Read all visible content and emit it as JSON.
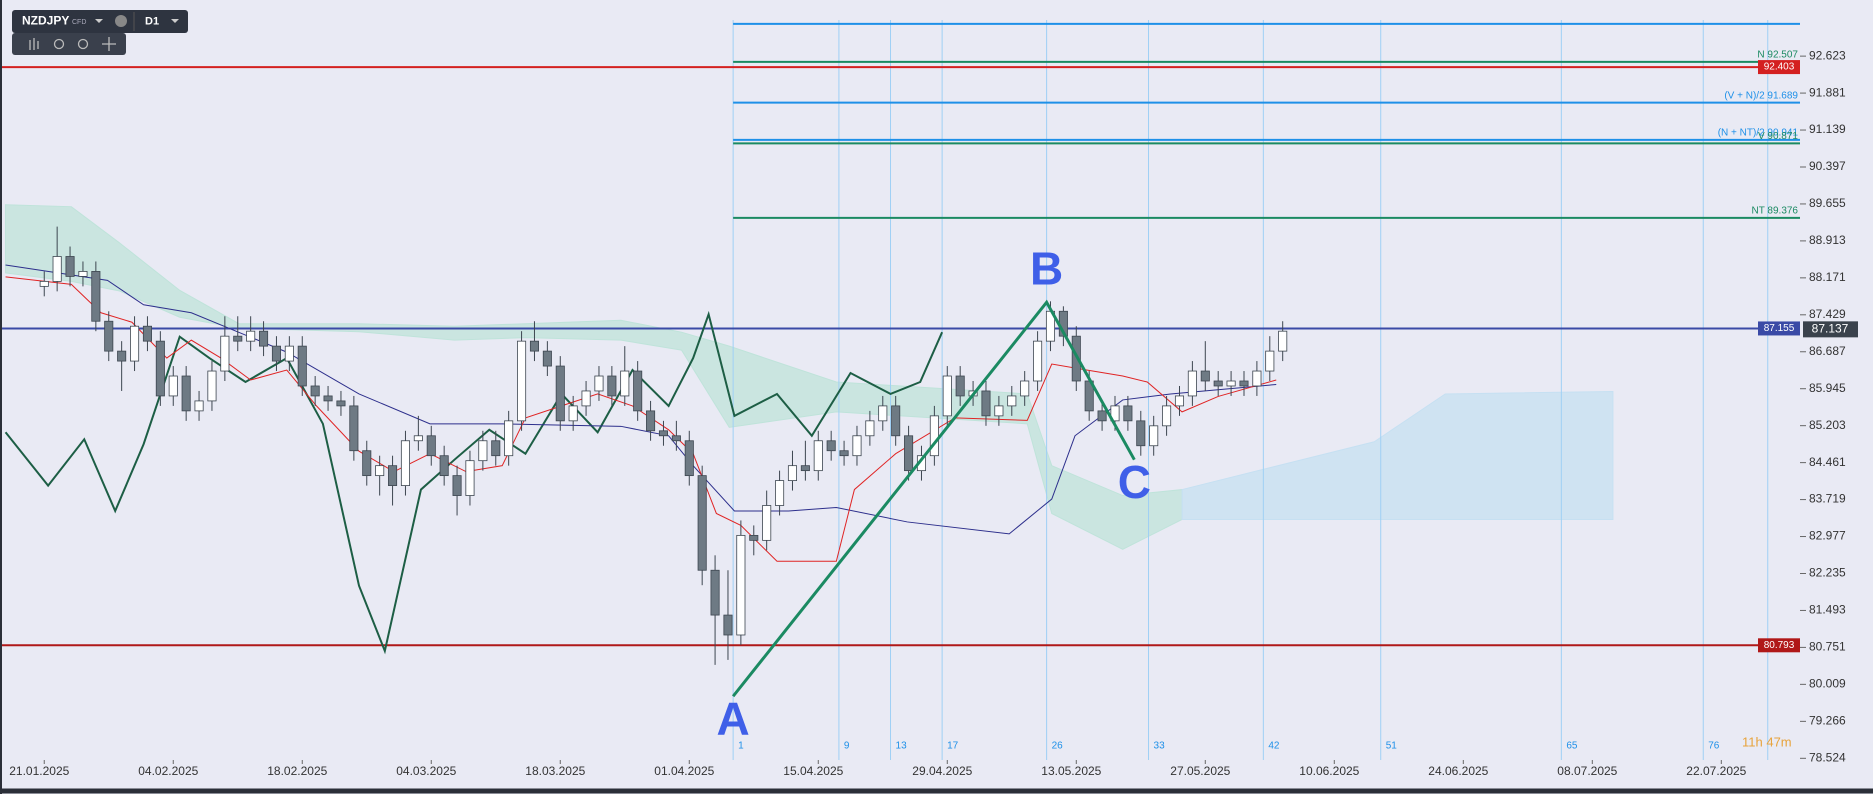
{
  "chart_data": {
    "type": "candlestick",
    "symbol": "NZDJPY",
    "badge": "CFD",
    "timeframe": "D1",
    "timer": "11h 47m",
    "xlim": [
      -3.43,
      136.1
    ],
    "ylim": [
      78.49,
      93.75
    ],
    "yticks": [
      92.623,
      91.881,
      91.139,
      90.397,
      89.655,
      88.913,
      88.171,
      87.429,
      86.687,
      85.945,
      85.203,
      84.461,
      83.719,
      82.977,
      82.235,
      81.493,
      80.751,
      80.009,
      79.266,
      78.524
    ],
    "xticks": [
      {
        "value": 0,
        "label": "21.01.2025"
      },
      {
        "value": 10,
        "label": "04.02.2025"
      },
      {
        "value": 20,
        "label": "18.02.2025"
      },
      {
        "value": 30,
        "label": "04.03.2025"
      },
      {
        "value": 40,
        "label": "18.03.2025"
      },
      {
        "value": 50,
        "label": "01.04.2025"
      },
      {
        "value": 60,
        "label": "15.04.2025"
      },
      {
        "value": 70,
        "label": "29.04.2025"
      },
      {
        "value": 80,
        "label": "13.05.2025"
      },
      {
        "value": 90,
        "label": "27.05.2025"
      },
      {
        "value": 100,
        "label": "10.06.2025"
      },
      {
        "value": 110,
        "label": "24.06.2025"
      },
      {
        "value": 120,
        "label": "08.07.2025"
      },
      {
        "value": 130,
        "label": "22.07.2025"
      }
    ],
    "x": [
      0,
      1,
      2,
      3,
      4,
      5,
      6,
      7,
      8,
      9,
      10,
      11,
      12,
      13,
      14,
      15,
      16,
      17,
      18,
      19,
      20,
      21,
      22,
      23,
      24,
      25,
      26,
      27,
      28,
      29,
      30,
      31,
      32,
      33,
      34,
      35,
      36,
      37,
      38,
      39,
      40,
      41,
      42,
      43,
      44,
      45,
      46,
      47,
      48,
      49,
      50,
      51,
      52,
      53,
      54,
      55,
      56,
      57,
      58,
      59,
      60,
      61,
      62,
      63,
      64,
      65,
      66,
      67,
      68,
      69,
      70,
      71,
      72,
      73,
      74,
      75,
      76,
      77,
      78,
      79,
      80,
      81,
      82,
      83,
      84,
      85,
      86,
      87,
      88,
      89,
      90,
      91,
      92,
      93,
      94,
      95,
      96
    ],
    "open": [
      88.0,
      88.1,
      88.6,
      88.2,
      88.3,
      87.3,
      86.7,
      86.5,
      87.2,
      86.9,
      85.8,
      86.2,
      85.5,
      85.7,
      86.3,
      87.0,
      86.9,
      87.1,
      86.8,
      86.5,
      86.8,
      86.0,
      85.8,
      85.7,
      85.6,
      84.7,
      84.2,
      84.4,
      84.0,
      84.9,
      85.0,
      84.6,
      84.2,
      83.8,
      84.5,
      84.9,
      84.6,
      85.3,
      86.9,
      86.7,
      86.4,
      85.3,
      85.6,
      85.9,
      86.2,
      85.8,
      86.3,
      85.5,
      85.1,
      85.0,
      84.9,
      84.2,
      82.3,
      81.4,
      81.0,
      83.0,
      82.9,
      83.6,
      84.1,
      84.4,
      84.3,
      84.9,
      84.7,
      84.6,
      85.0,
      85.3,
      85.6,
      85.0,
      84.3,
      84.6,
      85.4,
      86.2,
      85.8,
      85.9,
      85.4,
      85.6,
      85.8,
      86.1,
      86.9,
      87.5,
      87.0,
      86.1,
      85.5,
      85.3,
      85.6,
      85.3,
      84.8,
      85.2,
      85.6,
      85.8,
      86.3,
      86.1,
      86.0,
      86.1,
      86.0,
      86.3,
      86.7
    ],
    "high": [
      88.3,
      89.2,
      88.8,
      88.5,
      88.5,
      87.5,
      86.9,
      87.4,
      87.4,
      87.1,
      86.4,
      86.4,
      85.9,
      86.5,
      87.4,
      87.4,
      87.4,
      87.3,
      87.0,
      87.0,
      87.0,
      86.2,
      86.0,
      85.9,
      85.8,
      84.9,
      84.6,
      84.6,
      85.1,
      85.4,
      85.2,
      84.8,
      84.4,
      84.7,
      85.1,
      85.1,
      85.5,
      87.1,
      87.3,
      86.9,
      86.6,
      85.8,
      86.1,
      86.4,
      86.4,
      86.8,
      86.5,
      85.7,
      85.3,
      85.3,
      85.1,
      84.4,
      82.6,
      82.3,
      83.3,
      83.2,
      83.9,
      84.3,
      84.7,
      84.9,
      85.1,
      85.1,
      84.9,
      85.2,
      85.5,
      85.8,
      85.8,
      85.2,
      84.8,
      85.6,
      86.4,
      86.4,
      86.1,
      86.1,
      85.8,
      86.0,
      86.3,
      87.1,
      87.7,
      87.6,
      87.2,
      86.3,
      85.7,
      85.8,
      85.8,
      85.5,
      85.4,
      85.8,
      86.0,
      86.5,
      86.9,
      86.3,
      86.3,
      86.3,
      86.5,
      87.0,
      87.3
    ],
    "low": [
      87.8,
      87.9,
      88.0,
      88.0,
      87.1,
      86.5,
      85.9,
      86.3,
      86.7,
      85.6,
      85.6,
      85.3,
      85.3,
      85.5,
      86.1,
      86.7,
      86.7,
      86.6,
      86.3,
      86.3,
      85.8,
      85.6,
      85.5,
      85.4,
      84.5,
      84.0,
      83.8,
      83.6,
      83.8,
      84.7,
      84.4,
      84.0,
      83.4,
      83.6,
      84.3,
      84.4,
      84.4,
      85.1,
      86.5,
      86.2,
      85.1,
      85.1,
      85.4,
      85.7,
      85.6,
      85.6,
      85.3,
      84.9,
      84.8,
      84.7,
      84.0,
      82.0,
      80.4,
      80.5,
      80.8,
      82.6,
      82.7,
      83.4,
      83.9,
      84.1,
      84.1,
      84.5,
      84.4,
      84.4,
      84.8,
      85.1,
      84.8,
      84.1,
      84.1,
      84.4,
      85.2,
      85.6,
      85.6,
      85.2,
      85.2,
      85.4,
      85.6,
      85.9,
      86.7,
      86.8,
      85.9,
      85.3,
      85.1,
      85.1,
      85.1,
      84.6,
      84.6,
      85.0,
      85.4,
      85.6,
      85.9,
      85.8,
      85.8,
      85.8,
      85.8,
      86.1,
      86.5
    ],
    "close": [
      88.1,
      88.6,
      88.2,
      88.3,
      87.3,
      86.7,
      86.5,
      87.2,
      86.9,
      85.8,
      86.2,
      85.5,
      85.7,
      86.3,
      87.0,
      86.9,
      87.1,
      86.8,
      86.5,
      86.8,
      86.0,
      85.8,
      85.7,
      85.6,
      84.7,
      84.2,
      84.4,
      84.0,
      84.9,
      85.0,
      84.6,
      84.2,
      83.8,
      84.5,
      84.9,
      84.6,
      85.3,
      86.9,
      86.7,
      86.4,
      85.3,
      85.6,
      85.9,
      86.2,
      85.8,
      86.3,
      85.5,
      85.1,
      85.0,
      84.9,
      84.2,
      82.3,
      81.4,
      81.0,
      83.0,
      82.9,
      83.6,
      84.1,
      84.4,
      84.3,
      84.9,
      84.7,
      84.6,
      85.0,
      85.3,
      85.6,
      85.0,
      84.3,
      84.6,
      85.4,
      86.2,
      85.8,
      85.9,
      85.4,
      85.6,
      85.8,
      86.1,
      86.9,
      87.5,
      87.0,
      86.1,
      85.5,
      85.3,
      85.6,
      85.3,
      84.8,
      85.2,
      85.6,
      85.8,
      86.3,
      86.1,
      86.0,
      86.1,
      86.0,
      86.3,
      86.7,
      87.1
    ],
    "up_color": "#ffffff",
    "down_color": "#6e7a84",
    "cloud": [
      {
        "color": "#bfe3da",
        "x": [
          -3.0,
          2.1,
          5.8,
          10.5,
          15.1,
          24.4,
          31.8,
          37.3,
          44.7,
          49.4,
          53.1,
          61.4,
          76.2,
          78.1,
          83.6,
          88.2
        ],
        "upper": [
          89.64,
          89.6,
          88.88,
          87.92,
          87.25,
          87.25,
          87.2,
          87.25,
          87.32,
          87.08,
          86.8,
          86.08,
          85.84,
          84.4,
          83.8,
          83.92
        ],
        "lower": [
          88.27,
          88.1,
          87.91,
          87.38,
          87.16,
          87.09,
          86.92,
          86.97,
          86.92,
          86.72,
          85.17,
          85.48,
          85.24,
          83.44,
          82.72,
          83.32
        ]
      },
      {
        "color": "#c6e0f2",
        "x": [
          88.2,
          103.1,
          108.6,
          121.6
        ],
        "upper": [
          83.92,
          84.88,
          85.84,
          85.89
        ],
        "lower": [
          83.32,
          83.32,
          83.32,
          83.32
        ]
      }
    ],
    "overlays": [
      {
        "color": "#1d5e45",
        "width": 2,
        "x": [
          -3.0,
          0.3,
          3.1,
          5.5,
          7.7,
          10.5,
          12.8,
          15.6,
          18.8,
          21.6,
          24.4,
          26.4,
          29.2,
          31.8,
          34.5,
          37.3,
          40.1,
          42.9,
          45.6,
          48.4,
          50.3,
          51.5,
          53.5,
          56.8,
          59.5,
          62.5,
          65.6,
          67.9,
          69.6
        ],
        "values": [
          85.07,
          84.0,
          84.93,
          83.49,
          84.83,
          86.99,
          86.56,
          86.08,
          86.56,
          85.24,
          81.99,
          80.68,
          83.92,
          84.52,
          85.12,
          84.64,
          85.84,
          85.07,
          86.32,
          85.6,
          86.56,
          87.44,
          85.4,
          85.84,
          85.0,
          86.26,
          85.84,
          86.08,
          87.08
        ]
      },
      {
        "color": "#2d2f8c",
        "width": 1,
        "x": [
          -3.0,
          4.9,
          7.7,
          11.4,
          18.8,
          24.4,
          29.9,
          35.5,
          44.7,
          48.4,
          50.3,
          53.5,
          57.7,
          61.4,
          66.9,
          74.8,
          78.1,
          79.9,
          83.6,
          87.3,
          95.5
        ],
        "values": [
          88.43,
          88.12,
          87.63,
          87.47,
          86.68,
          85.84,
          85.24,
          85.24,
          85.19,
          85.0,
          84.4,
          83.49,
          83.49,
          83.56,
          83.27,
          83.03,
          83.73,
          85.0,
          85.72,
          85.84,
          86.03
        ]
      },
      {
        "color": "#e02424",
        "width": 1,
        "x": [
          -3.0,
          2.1,
          4.4,
          6.8,
          9.5,
          11.4,
          13.7,
          16.0,
          18.8,
          21.1,
          24.4,
          27.1,
          29.9,
          32.7,
          35.5,
          37.3,
          40.1,
          42.9,
          45.6,
          48.4,
          50.3,
          52.1,
          54.0,
          56.8,
          61.4,
          62.8,
          66.0,
          70.6,
          76.2,
          78.1,
          80.8,
          83.6,
          85.5,
          88.2,
          91.0,
          95.5
        ],
        "values": [
          88.19,
          88.04,
          87.47,
          87.28,
          86.56,
          86.92,
          86.56,
          86.12,
          86.32,
          85.6,
          84.69,
          84.28,
          84.64,
          84.28,
          84.4,
          85.36,
          85.6,
          85.84,
          85.6,
          85.12,
          84.64,
          83.44,
          83.2,
          82.48,
          82.48,
          83.92,
          84.64,
          85.36,
          85.31,
          86.44,
          86.32,
          86.2,
          86.08,
          85.48,
          85.79,
          86.12
        ]
      }
    ],
    "levels": [
      {
        "value": 93.27,
        "color": "#1e90e8",
        "from": 53.4
      },
      {
        "value": 92.507,
        "color": "#1b8a62",
        "from": 53.4,
        "text": "N 92.507"
      },
      {
        "value": 92.403,
        "color": "#d42020",
        "from": -3.43,
        "box": true
      },
      {
        "value": 91.689,
        "color": "#1e90e8",
        "from": 53.4,
        "text": "(V + N)/2 91.689"
      },
      {
        "value": 90.941,
        "color": "#1e90e8",
        "from": 53.4,
        "text": "(N + NT)/2 90.941"
      },
      {
        "value": 90.871,
        "color": "#1b8a62",
        "from": 53.4,
        "text": "V 90.871"
      },
      {
        "value": 89.376,
        "color": "#1b8a62",
        "from": 53.4,
        "text": "NT 89.376"
      },
      {
        "value": 87.155,
        "color": "#3a4aa6",
        "from": -3.43,
        "box": true
      },
      {
        "value": 80.793,
        "color": "#b01818",
        "from": -3.43,
        "box": true
      }
    ],
    "current_price": 87.137,
    "time_lines": {
      "x": [
        53.4,
        61.6,
        65.6,
        69.6,
        77.7,
        85.6,
        94.5,
        103.6,
        117.6,
        128.6,
        133.6
      ],
      "labels": [
        1,
        9,
        13,
        17,
        26,
        33,
        42,
        51,
        65,
        76,
        null
      ]
    },
    "abc": {
      "color": "#1b8a62",
      "x": [
        53.4,
        77.7,
        84.5
      ],
      "values": [
        79.77,
        87.68,
        84.52
      ],
      "labels": [
        "A",
        "B",
        "C"
      ]
    }
  }
}
